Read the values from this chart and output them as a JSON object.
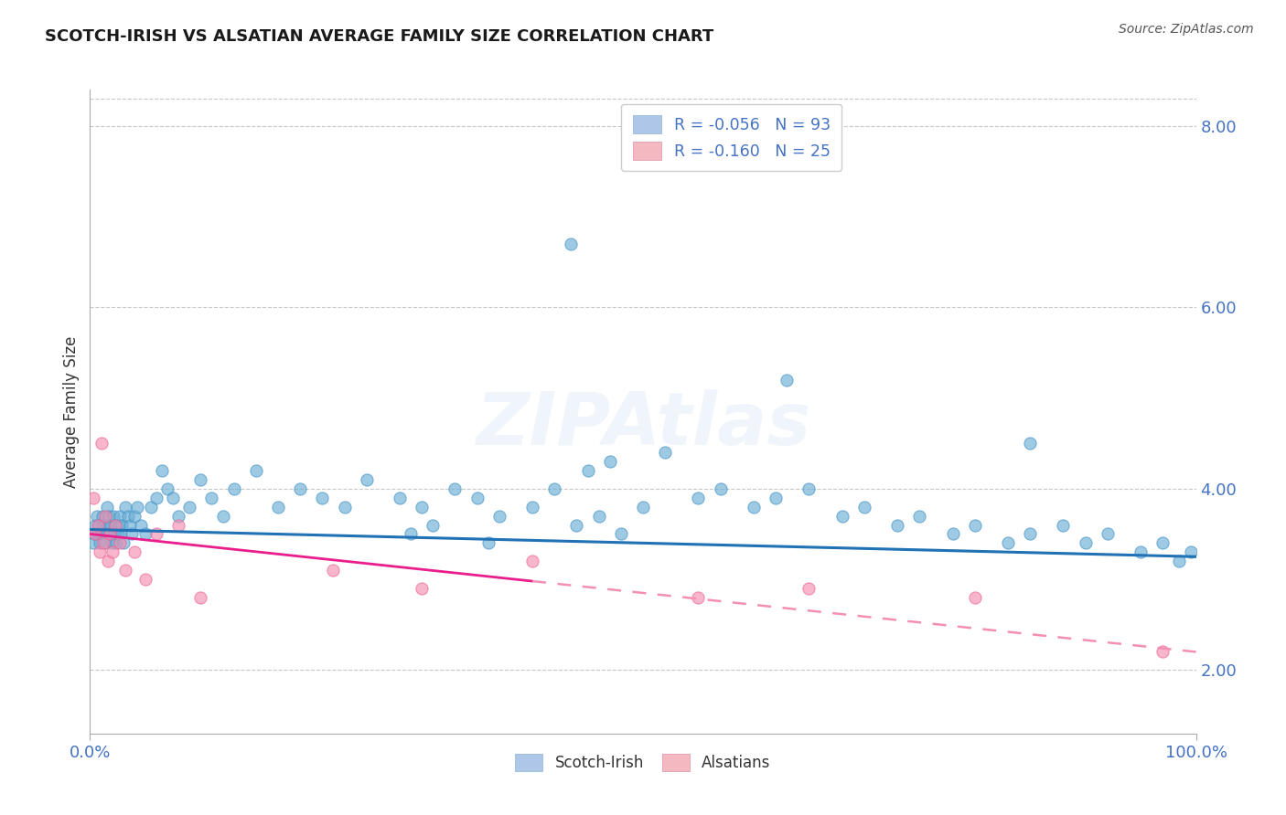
{
  "title": "SCOTCH-IRISH VS ALSATIAN AVERAGE FAMILY SIZE CORRELATION CHART",
  "source": "Source: ZipAtlas.com",
  "ylabel": "Average Family Size",
  "right_yticks": [
    2.0,
    4.0,
    6.0,
    8.0
  ],
  "legend_bottom": [
    "Scotch-Irish",
    "Alsatians"
  ],
  "scotch_irish_color": "#6baed6",
  "alsatian_color": "#f48fb1",
  "scotch_irish_marker_edge": "#4292c6",
  "alsatian_marker_edge": "#f06292",
  "scotch_irish_line_color": "#2171b5",
  "alsatian_line_solid_color": "#e91e8c",
  "alsatian_line_dash_color": "#f48fb1",
  "background_color": "#ffffff",
  "grid_color": "#c8c8c8",
  "R_scotch": -0.056,
  "N_scotch": 93,
  "R_alsatian": -0.16,
  "N_alsatian": 25,
  "xmin": 0.0,
  "xmax": 100.0,
  "ymin": 1.3,
  "ymax": 8.4,
  "legend_box_color": "#aec6e8",
  "legend_box_color2": "#f4b8c1",
  "scotch_x": [
    0.3,
    0.4,
    0.5,
    0.6,
    0.7,
    0.8,
    0.9,
    1.0,
    1.1,
    1.2,
    1.3,
    1.4,
    1.5,
    1.6,
    1.7,
    1.8,
    1.9,
    2.0,
    2.1,
    2.2,
    2.3,
    2.4,
    2.5,
    2.6,
    2.7,
    2.8,
    2.9,
    3.0,
    3.2,
    3.4,
    3.6,
    3.8,
    4.0,
    4.3,
    4.6,
    5.0,
    5.5,
    6.0,
    6.5,
    7.0,
    7.5,
    8.0,
    9.0,
    10.0,
    11.0,
    12.0,
    13.0,
    15.0,
    17.0,
    19.0,
    21.0,
    23.0,
    25.0,
    28.0,
    30.0,
    33.0,
    35.0,
    37.0,
    40.0,
    42.0,
    43.5,
    45.0,
    47.0,
    50.0,
    52.0,
    55.0,
    57.0,
    60.0,
    62.0,
    65.0,
    68.0,
    70.0,
    73.0,
    75.0,
    78.0,
    80.0,
    83.0,
    85.0,
    88.0,
    90.0,
    92.0,
    95.0,
    97.0,
    98.5,
    99.5,
    29.0,
    31.0,
    36.0,
    44.0,
    46.0,
    48.0,
    63.0,
    85.0
  ],
  "scotch_y": [
    3.4,
    3.5,
    3.6,
    3.7,
    3.5,
    3.6,
    3.4,
    3.5,
    3.7,
    3.6,
    3.5,
    3.4,
    3.8,
    3.6,
    3.7,
    3.5,
    3.6,
    3.4,
    3.7,
    3.5,
    3.6,
    3.4,
    3.5,
    3.6,
    3.7,
    3.5,
    3.6,
    3.4,
    3.8,
    3.7,
    3.6,
    3.5,
    3.7,
    3.8,
    3.6,
    3.5,
    3.8,
    3.9,
    4.2,
    4.0,
    3.9,
    3.7,
    3.8,
    4.1,
    3.9,
    3.7,
    4.0,
    4.2,
    3.8,
    4.0,
    3.9,
    3.8,
    4.1,
    3.9,
    3.8,
    4.0,
    3.9,
    3.7,
    3.8,
    4.0,
    6.7,
    4.2,
    4.3,
    3.8,
    4.4,
    3.9,
    4.0,
    3.8,
    3.9,
    4.0,
    3.7,
    3.8,
    3.6,
    3.7,
    3.5,
    3.6,
    3.4,
    3.5,
    3.6,
    3.4,
    3.5,
    3.3,
    3.4,
    3.2,
    3.3,
    3.5,
    3.6,
    3.4,
    3.6,
    3.7,
    3.5,
    5.2,
    4.5
  ],
  "alsatian_x": [
    0.3,
    0.5,
    0.7,
    0.9,
    1.0,
    1.2,
    1.4,
    1.6,
    1.8,
    2.0,
    2.3,
    2.7,
    3.2,
    4.0,
    5.0,
    6.0,
    8.0,
    10.0,
    22.0,
    30.0,
    40.0,
    55.0,
    65.0,
    80.0,
    97.0
  ],
  "alsatian_y": [
    3.9,
    3.5,
    3.6,
    3.3,
    4.5,
    3.4,
    3.7,
    3.2,
    3.5,
    3.3,
    3.6,
    3.4,
    3.1,
    3.3,
    3.0,
    3.5,
    3.6,
    2.8,
    3.1,
    2.9,
    3.2,
    2.8,
    2.9,
    2.8,
    2.2
  ],
  "alsatian_solid_end_x": 40.0,
  "trend_scotch_slope": -0.003,
  "trend_scotch_intercept": 3.55,
  "trend_alsatian_slope": -0.013,
  "trend_alsatian_intercept": 3.5
}
